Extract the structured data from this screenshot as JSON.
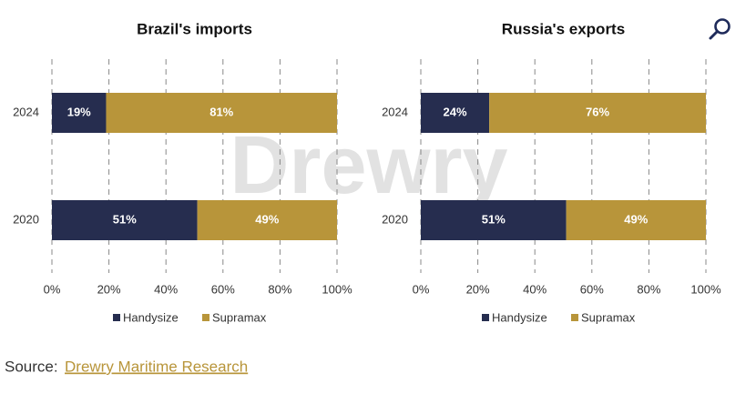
{
  "chart_data": [
    {
      "type": "stacked-bar",
      "title": "Brazil's imports",
      "categories": [
        "2024",
        "2020"
      ],
      "series": [
        {
          "name": "Handysize",
          "color": "#262d4f",
          "values": [
            19,
            51
          ],
          "value_labels": [
            "19%",
            "51%"
          ]
        },
        {
          "name": "Supramax",
          "color": "#b8953a",
          "values": [
            81,
            49
          ],
          "value_labels": [
            "81%",
            "49%"
          ]
        }
      ],
      "xlim": [
        0,
        100
      ],
      "xticks": [
        {
          "value": 0,
          "label": "0%"
        },
        {
          "value": 20,
          "label": "20%"
        },
        {
          "value": 40,
          "label": "40%"
        },
        {
          "value": 60,
          "label": "60%"
        },
        {
          "value": 80,
          "label": "80%"
        },
        {
          "value": 100,
          "label": "100%"
        }
      ],
      "grid": true,
      "legend": "bottom"
    },
    {
      "type": "stacked-bar",
      "title": "Russia's exports",
      "categories": [
        "2024",
        "2020"
      ],
      "series": [
        {
          "name": "Handysize",
          "color": "#262d4f",
          "values": [
            24,
            51
          ],
          "value_labels": [
            "24%",
            "51%"
          ]
        },
        {
          "name": "Supramax",
          "color": "#b8953a",
          "values": [
            76,
            49
          ],
          "value_labels": [
            "76%",
            "49%"
          ]
        }
      ],
      "xlim": [
        0,
        100
      ],
      "xticks": [
        {
          "value": 0,
          "label": "0%"
        },
        {
          "value": 20,
          "label": "20%"
        },
        {
          "value": 40,
          "label": "40%"
        },
        {
          "value": 60,
          "label": "60%"
        },
        {
          "value": 80,
          "label": "80%"
        },
        {
          "value": 100,
          "label": "100%"
        }
      ],
      "grid": true,
      "legend": "bottom"
    }
  ],
  "watermark": "Drewry",
  "source": {
    "label": "Source:",
    "text": "Drewry Maritime Research"
  }
}
